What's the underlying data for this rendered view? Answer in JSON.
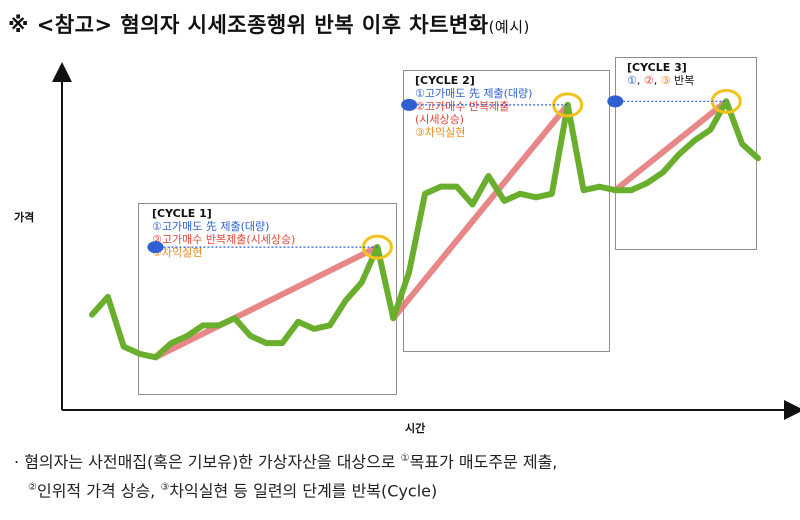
{
  "title": {
    "main": "※ <참고> 혐의자 시세조종행위 반복 이후 차트변화",
    "sub": "(예시)"
  },
  "axes": {
    "y_label": "가격",
    "x_label": "시간"
  },
  "cycles": [
    {
      "title": "[CYCLE 1]",
      "lines": [
        {
          "text": "①고가매도 先 제출(대량)",
          "color": "blue"
        },
        {
          "text": "②고가매수 반복제출(시세상승)",
          "color": "red"
        },
        {
          "text": "③차익실현",
          "color": "orange"
        }
      ]
    },
    {
      "title": "[CYCLE 2]",
      "lines": [
        {
          "text": "①고가매도 先 제출(대량)",
          "color": "blue"
        },
        {
          "text": "②고가매수 반복제출",
          "color": "red"
        },
        {
          "text": "(시세상승)",
          "color": "red"
        },
        {
          "text": "③차익실현",
          "color": "orange"
        }
      ]
    },
    {
      "title": "[CYCLE 3]",
      "lines": [
        {
          "text": "①, ②, ③ 반복",
          "color": "mixed"
        }
      ]
    }
  ],
  "cycle3_parts": {
    "one": "①",
    "two": "②",
    "three": "③",
    "sep": ", ",
    "word": " 반복"
  },
  "footnote": {
    "bullet": "·",
    "line1_a": "혐의자는 사전매집(혹은 기보유)한 가상자산을 대상으로 ",
    "sup1": "①",
    "line1_b": "목표가 매도주문 제출,",
    "sup2": "②",
    "line2_a": "인위적 가격 상승, ",
    "sup3": "③",
    "line2_b": "차익실현 등 일련의 단계를 반복(Cycle)"
  },
  "colors": {
    "price_line": "#6aae2e",
    "trend_line": "#e57373",
    "sell_marker": "#2f5fd0",
    "profit_circle": "#f2c21b",
    "axis": "#111111",
    "box_border": "#8f8f8f"
  },
  "chart_data": {
    "type": "line",
    "series": [
      {
        "values": [
          3.4,
          3.9,
          2.5,
          2.3,
          2.2,
          2.6,
          2.8,
          3.1,
          3.1,
          3.3,
          2.8,
          2.6,
          2.6,
          3.2,
          3.0,
          3.1,
          3.8,
          4.3,
          5.3,
          3.3,
          4.6,
          6.8,
          7.0,
          7.0,
          6.5,
          7.3,
          6.6,
          6.8,
          6.7,
          6.8,
          9.3,
          6.9,
          7.0,
          6.9,
          6.9,
          7.1,
          7.4,
          7.9,
          8.3,
          8.6,
          9.4,
          8.2,
          7.8
        ]
      }
    ],
    "trend_segments": [
      {
        "from": [
          4,
          2.2
        ],
        "to": [
          18,
          5.3
        ]
      },
      {
        "from": [
          19,
          3.3
        ],
        "to": [
          30,
          9.3
        ]
      },
      {
        "from": [
          33,
          6.9
        ],
        "to": [
          40,
          9.4
        ]
      }
    ],
    "sell_orders": [
      {
        "x": 4,
        "y": 5.3
      },
      {
        "x": 20,
        "y": 9.3
      },
      {
        "x": 33,
        "y": 9.4
      }
    ],
    "profit_peaks": [
      18,
      30,
      40
    ],
    "cycle_ranges": [
      [
        4,
        19
      ],
      [
        20,
        31
      ],
      [
        32,
        42
      ]
    ],
    "xlim": [
      0,
      42
    ],
    "ylim": [
      1,
      10
    ],
    "grid": false,
    "legend": "none"
  }
}
